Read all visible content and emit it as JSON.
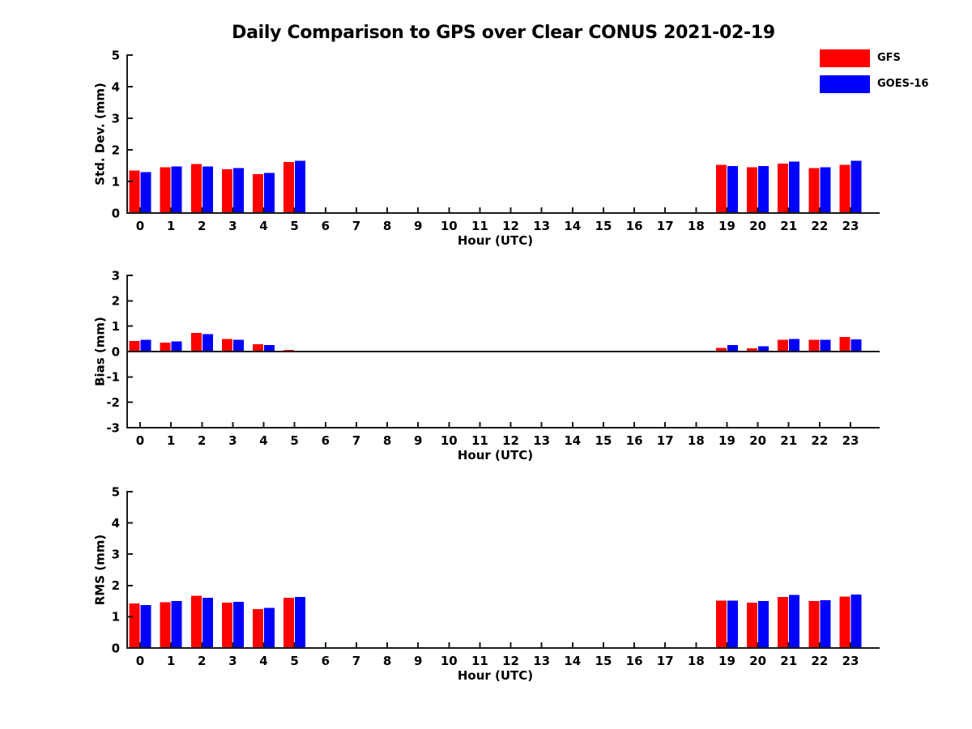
{
  "title": "Daily Comparison to GPS over Clear CONUS 2021-02-19",
  "legend": {
    "items": [
      {
        "label": "GFS",
        "color": "#ff0000"
      },
      {
        "label": "GOES-16",
        "color": "#0000ff"
      }
    ]
  },
  "colors": {
    "gfs": "#ff0000",
    "goes16": "#0000ff",
    "axis": "#1a1a1a",
    "text": "#000000",
    "background": "#ffffff"
  },
  "chart_data": [
    {
      "type": "bar",
      "title": "",
      "xlabel": "Hour (UTC)",
      "ylabel": "Std. Dev. (mm)",
      "ylim": [
        0,
        5
      ],
      "yticks": [
        0,
        1,
        2,
        3,
        4,
        5
      ],
      "grid": false,
      "legend_position": "outside-top-right",
      "categories": [
        0,
        1,
        2,
        3,
        4,
        5,
        6,
        7,
        8,
        9,
        10,
        11,
        12,
        13,
        14,
        15,
        16,
        17,
        18,
        19,
        20,
        21,
        22,
        23
      ],
      "series": [
        {
          "name": "GFS",
          "color": "#ff0000",
          "values": [
            1.35,
            1.45,
            1.55,
            1.38,
            1.23,
            1.62,
            null,
            null,
            null,
            null,
            null,
            null,
            null,
            null,
            null,
            null,
            null,
            null,
            null,
            1.52,
            1.45,
            1.57,
            1.42,
            1.53
          ]
        },
        {
          "name": "GOES-16",
          "color": "#0000ff",
          "values": [
            1.3,
            1.47,
            1.48,
            1.42,
            1.27,
            1.65,
            null,
            null,
            null,
            null,
            null,
            null,
            null,
            null,
            null,
            null,
            null,
            null,
            null,
            1.49,
            1.49,
            1.63,
            1.45,
            1.66
          ]
        }
      ]
    },
    {
      "type": "bar",
      "title": "",
      "xlabel": "Hour (UTC)",
      "ylabel": "Bias (mm)",
      "ylim": [
        -3,
        3
      ],
      "yticks": [
        -3,
        -2,
        -1,
        0,
        1,
        2,
        3
      ],
      "grid": false,
      "zero_line": true,
      "categories": [
        0,
        1,
        2,
        3,
        4,
        5,
        6,
        7,
        8,
        9,
        10,
        11,
        12,
        13,
        14,
        15,
        16,
        17,
        18,
        19,
        20,
        21,
        22,
        23
      ],
      "series": [
        {
          "name": "GFS",
          "color": "#ff0000",
          "values": [
            0.42,
            0.35,
            0.73,
            0.5,
            0.28,
            0.06,
            null,
            null,
            null,
            null,
            null,
            null,
            null,
            null,
            null,
            null,
            null,
            null,
            null,
            0.15,
            0.13,
            0.46,
            0.46,
            0.58
          ]
        },
        {
          "name": "GOES-16",
          "color": "#0000ff",
          "values": [
            0.46,
            0.4,
            0.68,
            0.47,
            0.26,
            0.02,
            null,
            null,
            null,
            null,
            null,
            null,
            null,
            null,
            null,
            null,
            null,
            null,
            null,
            0.25,
            0.2,
            0.49,
            0.46,
            0.48
          ]
        }
      ]
    },
    {
      "type": "bar",
      "title": "",
      "xlabel": "Hour (UTC)",
      "ylabel": "RMS (mm)",
      "ylim": [
        0,
        5
      ],
      "yticks": [
        0,
        1,
        2,
        3,
        4,
        5
      ],
      "grid": false,
      "categories": [
        0,
        1,
        2,
        3,
        4,
        5,
        6,
        7,
        8,
        9,
        10,
        11,
        12,
        13,
        14,
        15,
        16,
        17,
        18,
        19,
        20,
        21,
        22,
        23
      ],
      "series": [
        {
          "name": "GFS",
          "color": "#ff0000",
          "values": [
            1.42,
            1.47,
            1.67,
            1.45,
            1.25,
            1.6,
            null,
            null,
            null,
            null,
            null,
            null,
            null,
            null,
            null,
            null,
            null,
            null,
            null,
            1.52,
            1.45,
            1.63,
            1.5,
            1.65
          ]
        },
        {
          "name": "GOES-16",
          "color": "#0000ff",
          "values": [
            1.37,
            1.5,
            1.6,
            1.48,
            1.28,
            1.63,
            null,
            null,
            null,
            null,
            null,
            null,
            null,
            null,
            null,
            null,
            null,
            null,
            null,
            1.52,
            1.5,
            1.7,
            1.53,
            1.71
          ]
        }
      ]
    }
  ]
}
